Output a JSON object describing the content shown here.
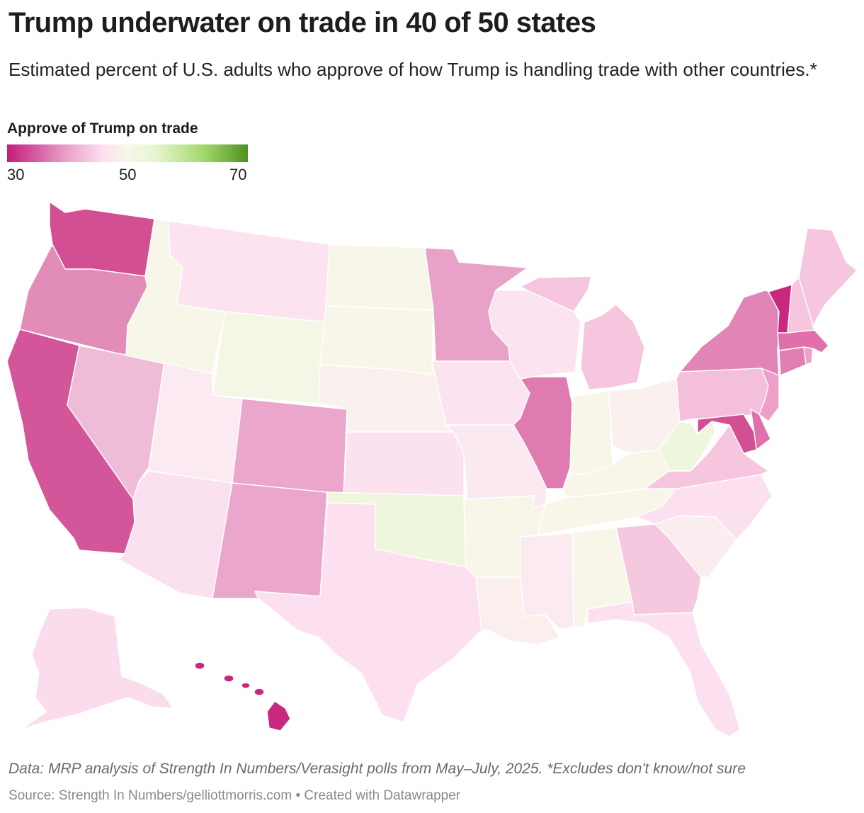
{
  "title": "Trump underwater on trade in 40 of 50 states",
  "subtitle": "Estimated percent of U.S. adults who approve of how Trump is handling trade with other countries.*",
  "legend": {
    "title": "Approve of Trump on trade",
    "ticks": [
      "30",
      "50",
      "70"
    ],
    "colors": [
      "#c51b7d",
      "#e9a3c9",
      "#fde0ef",
      "#f8f6e9",
      "#e6f5d0",
      "#a1d76a",
      "#4d9221"
    ]
  },
  "notes": "Data: MRP analysis of Strength In Numbers/Verasight polls from May–July, 2025. *Excludes don't know/not sure",
  "source": "Source: Strength In Numbers/gelliottmorris.com • Created with Datawrapper",
  "map_colors": {
    "WA": "#d14f92",
    "OR": "#e18db8",
    "CA": "#d4569a",
    "NV": "#efbcd8",
    "ID": "#f8f5e9",
    "MT": "#fce3ef",
    "WY": "#f4f7e5",
    "UT": "#fbeaf1",
    "AZ": "#fbe1ef",
    "CO": "#eba6cc",
    "NM": "#eba6cc",
    "ND": "#f8f6e9",
    "SD": "#f8f6e9",
    "NE": "#faf0ee",
    "KS": "#fce1ee",
    "OK": "#eef6dd",
    "TX": "#fde0ef",
    "MN": "#e8a2c8",
    "IA": "#fbe3ef",
    "MO": "#fbe9f1",
    "AR": "#f8f6e9",
    "LA": "#fbefee",
    "WI": "#fbe3ef",
    "IL": "#e07bb2",
    "MI": "#f5c6de",
    "IN": "#f8f6e9",
    "OH": "#faf0ee",
    "KY": "#f8f6e9",
    "TN": "#f8f6e9",
    "MS": "#fbeaf0",
    "AL": "#f8f6e9",
    "GA": "#f5c8df",
    "FL": "#fde0ef",
    "SC": "#fbecef",
    "NC": "#fde0ef",
    "VA": "#f5c6de",
    "WV": "#eef6dd",
    "PA": "#f3bfda",
    "NY": "#e185b6",
    "NJ": "#ee9fc8",
    "DE": "#e06fab",
    "MD": "#d14f92",
    "CT": "#e27eb4",
    "RI": "#eda2c8",
    "MA": "#e06fab",
    "VT": "#c9287f",
    "NH": "#f5c6de",
    "ME": "#f5c6de",
    "AK": "#fbdcec",
    "HI": "#c9287f"
  }
}
